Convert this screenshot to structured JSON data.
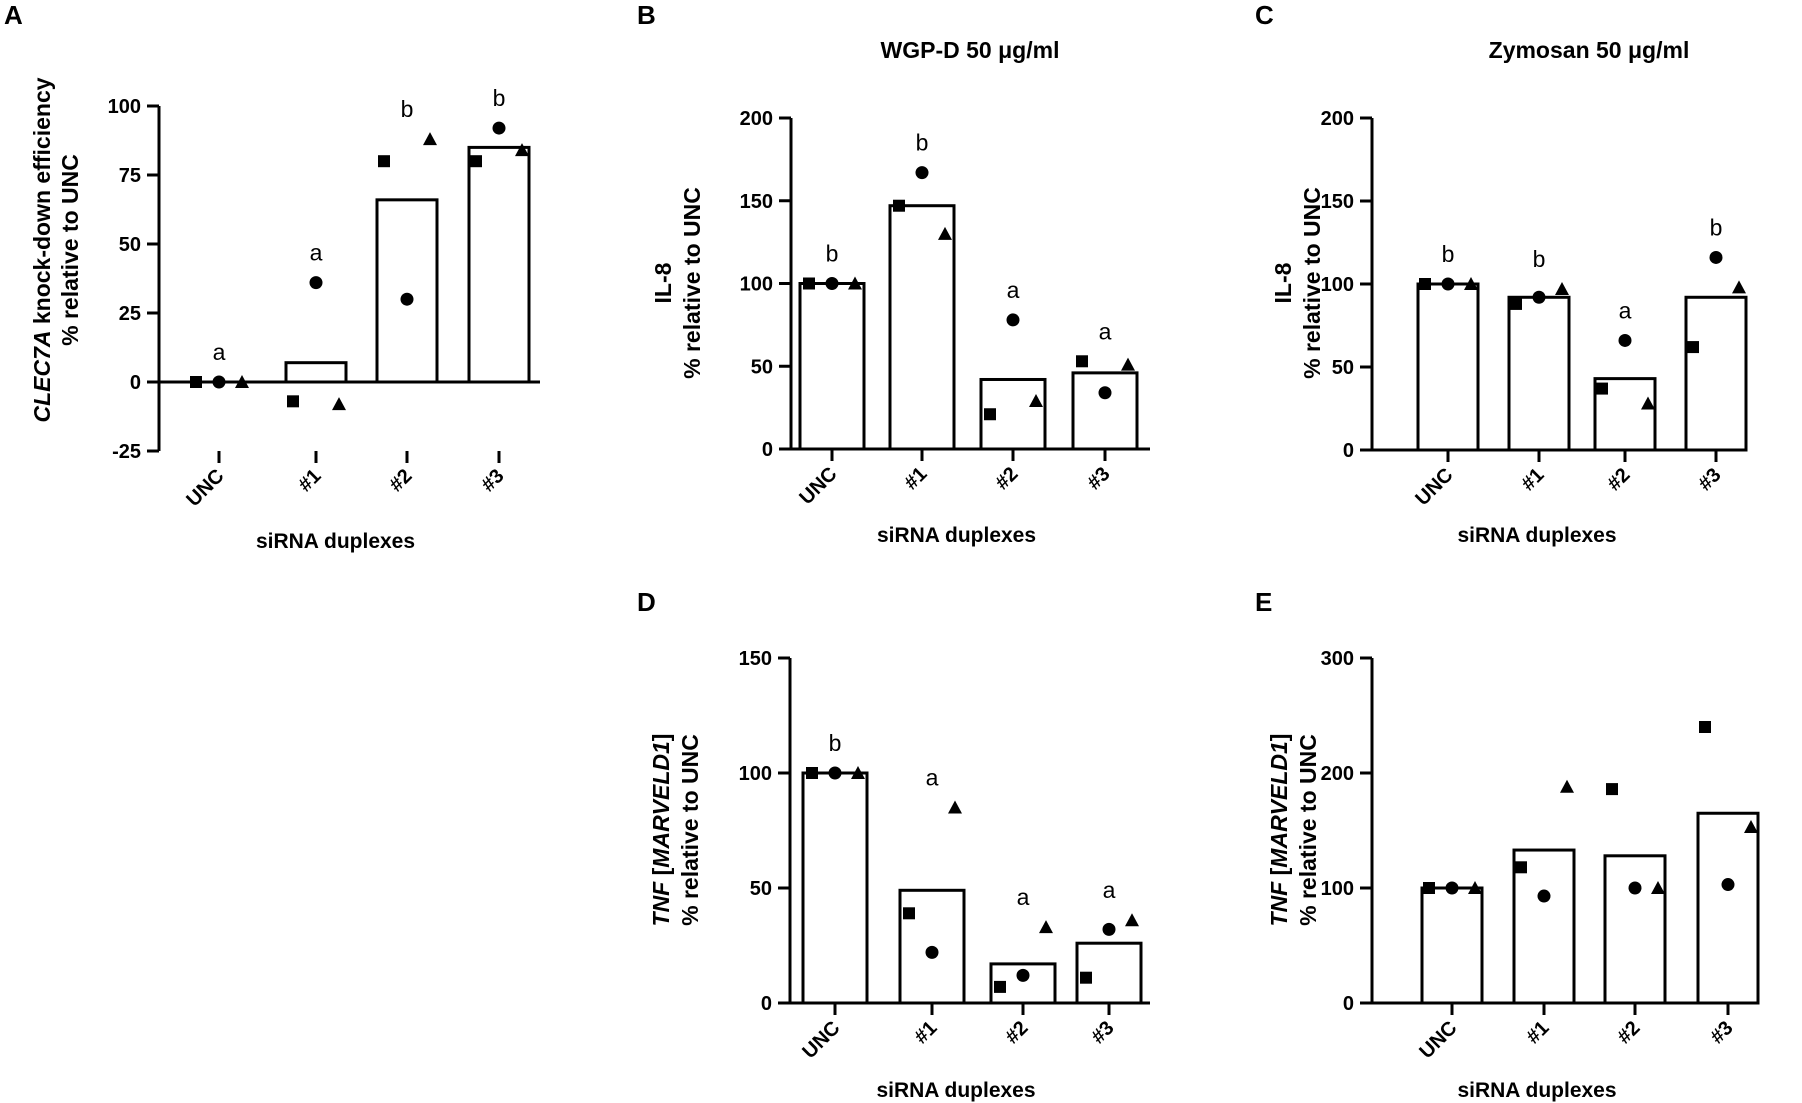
{
  "chart_data": [
    {
      "type": "bar",
      "panel": "A",
      "title": "",
      "ylabel_lines": [
        [
          {
            "text": "CLEC7A",
            "italic": true
          },
          {
            "text": " knock-down efficiency",
            "italic": false
          }
        ],
        [
          {
            "text": "% relative to UNC",
            "italic": false
          }
        ]
      ],
      "xlabel": "siRNA duplexes",
      "categories": [
        "UNC",
        "#1",
        "#2",
        "#3"
      ],
      "values": [
        0,
        7,
        66,
        85
      ],
      "ylim": [
        -25,
        100
      ],
      "yticks": [
        -25,
        0,
        25,
        50,
        75,
        100
      ],
      "significance": [
        "a",
        "a",
        "b",
        "b"
      ],
      "points": [
        {
          "square": 0,
          "circle": 0,
          "triangle": 0
        },
        {
          "square": -7,
          "circle": 36,
          "triangle": -8
        },
        {
          "square": 80,
          "circle": 30,
          "triangle": 88
        },
        {
          "square": 80,
          "circle": 92,
          "triangle": 84
        }
      ]
    },
    {
      "type": "bar",
      "panel": "B",
      "title": "WGP-D 50 μg/ml",
      "ylabel_lines": [
        [
          {
            "text": "IL-8",
            "italic": false
          }
        ],
        [
          {
            "text": "% relative to UNC",
            "italic": false
          }
        ]
      ],
      "xlabel": "siRNA duplexes",
      "categories": [
        "UNC",
        "#1",
        "#2",
        "#3"
      ],
      "values": [
        100,
        147,
        42,
        46
      ],
      "ylim": [
        0,
        200
      ],
      "yticks": [
        0,
        50,
        100,
        150,
        200
      ],
      "significance": [
        "b",
        "b",
        "a",
        "a"
      ],
      "points": [
        {
          "square": 100,
          "circle": 100,
          "triangle": 100
        },
        {
          "square": 147,
          "circle": 167,
          "triangle": 130
        },
        {
          "square": 21,
          "circle": 78,
          "triangle": 29
        },
        {
          "square": 53,
          "circle": 34,
          "triangle": 51
        }
      ]
    },
    {
      "type": "bar",
      "panel": "C",
      "title": "Zymosan 50 μg/ml",
      "ylabel_lines": [
        [
          {
            "text": "IL-8",
            "italic": false
          }
        ],
        [
          {
            "text": "% relative to UNC",
            "italic": false
          }
        ]
      ],
      "xlabel": "siRNA duplexes",
      "categories": [
        "UNC",
        "#1",
        "#2",
        "#3"
      ],
      "values": [
        100,
        92,
        43,
        92
      ],
      "ylim": [
        0,
        200
      ],
      "yticks": [
        0,
        50,
        100,
        150,
        200
      ],
      "significance": [
        "b",
        "b",
        "a",
        "b"
      ],
      "points": [
        {
          "square": 100,
          "circle": 100,
          "triangle": 100
        },
        {
          "square": 88,
          "circle": 92,
          "triangle": 97
        },
        {
          "square": 37,
          "circle": 66,
          "triangle": 28
        },
        {
          "square": 62,
          "circle": 116,
          "triangle": 98
        }
      ]
    },
    {
      "type": "bar",
      "panel": "D",
      "title": "",
      "ylabel_lines": [
        [
          {
            "text": "TNF",
            "italic": true
          },
          {
            "text": " [",
            "italic": false
          },
          {
            "text": "MARVELD1",
            "italic": true
          },
          {
            "text": "]",
            "italic": false
          }
        ],
        [
          {
            "text": "% relative to UNC",
            "italic": false
          }
        ]
      ],
      "xlabel": "siRNA duplexes",
      "categories": [
        "UNC",
        "#1",
        "#2",
        "#3"
      ],
      "values": [
        100,
        49,
        17,
        26
      ],
      "ylim": [
        0,
        150
      ],
      "yticks": [
        0,
        50,
        100,
        150
      ],
      "significance": [
        "b",
        "a",
        "a",
        "a"
      ],
      "points": [
        {
          "square": 100,
          "circle": 100,
          "triangle": 100
        },
        {
          "square": 39,
          "circle": 22,
          "triangle": 85
        },
        {
          "square": 7,
          "circle": 12,
          "triangle": 33
        },
        {
          "square": 11,
          "circle": 32,
          "triangle": 36
        }
      ]
    },
    {
      "type": "bar",
      "panel": "E",
      "title": "",
      "ylabel_lines": [
        [
          {
            "text": "TNF",
            "italic": true
          },
          {
            "text": " [",
            "italic": false
          },
          {
            "text": "MARVELD1",
            "italic": true
          },
          {
            "text": "]",
            "italic": false
          }
        ],
        [
          {
            "text": "% relative to UNC",
            "italic": false
          }
        ]
      ],
      "xlabel": "siRNA duplexes",
      "categories": [
        "UNC",
        "#1",
        "#2",
        "#3"
      ],
      "values": [
        100,
        133,
        128,
        165
      ],
      "ylim": [
        0,
        300
      ],
      "yticks": [
        0,
        100,
        200,
        300
      ],
      "significance": [
        "",
        "",
        "",
        ""
      ],
      "points": [
        {
          "square": 100,
          "circle": 100,
          "triangle": 100
        },
        {
          "square": 118,
          "circle": 93,
          "triangle": 188
        },
        {
          "square": 186,
          "circle": 100,
          "triangle": 100
        },
        {
          "square": 240,
          "circle": 103,
          "triangle": 153
        }
      ]
    }
  ]
}
